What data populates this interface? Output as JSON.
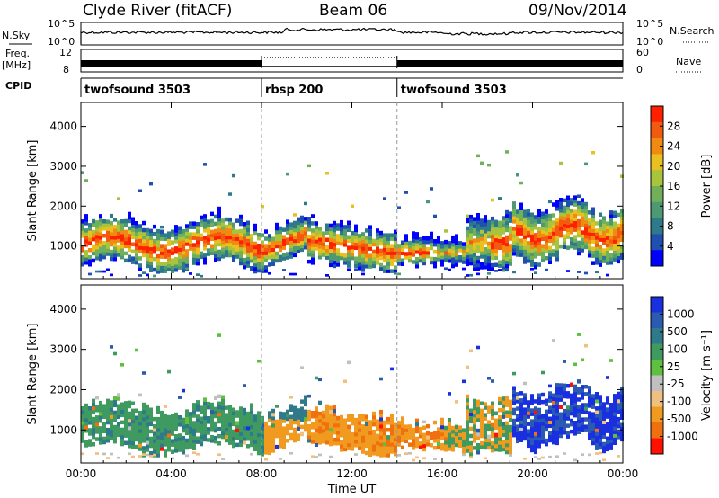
{
  "header": {
    "station": "Clyde River (fitACF)",
    "beam": "Beam 06",
    "date": "09/Nov/2014"
  },
  "labels": {
    "nsky": "N.Sky",
    "nsearch": "N.Search",
    "freq": "Freq.",
    "freq_unit": "[MHz]",
    "nave": "Nave",
    "cpid": "CPID",
    "exp10_5": "10^5",
    "exp10_0": "10^0",
    "freq_hi": "12",
    "freq_lo": "8",
    "nave_hi": "60",
    "nave_lo": "0"
  },
  "cpid_segments": [
    {
      "label": "twofsound 3503",
      "start_hour": 0
    },
    {
      "label": "rbsp 200",
      "start_hour": 8
    },
    {
      "label": "twofsound 3503",
      "start_hour": 14
    }
  ],
  "colors": {
    "power": [
      "#0000ff",
      "#1f4fb0",
      "#2f7a8a",
      "#4d9a72",
      "#70b05a",
      "#a8c43c",
      "#e8c020",
      "#f08a10",
      "#f25a10",
      "#ff2000"
    ],
    "velocity": [
      "#1a2fe0",
      "#2a5bb0",
      "#2f7a8a",
      "#3f9a60",
      "#5fc040",
      "#c0c0c0",
      "#f0c080",
      "#f09a20",
      "#f07010",
      "#ff1000"
    ]
  },
  "chart_data": [
    {
      "type": "heatmap",
      "name": "power",
      "ylabel": "Slant Range [km]",
      "xlabel": "Time UT",
      "x_ticks": [
        "00:00",
        "04:00",
        "08:00",
        "12:00",
        "16:00",
        "20:00",
        "00:00"
      ],
      "x_range_hours": [
        0,
        24
      ],
      "y_ticks": [
        1000,
        2000,
        3000,
        4000
      ],
      "ylim": [
        180,
        4600
      ],
      "colorbar_label": "Power [dB]",
      "colorbar_ticks": [
        "4",
        "8",
        "12",
        "16",
        "20",
        "24",
        "28"
      ],
      "colorbar_range": [
        0,
        32
      ]
    },
    {
      "type": "heatmap",
      "name": "velocity",
      "ylabel": "Slant Range [km]",
      "xlabel": "Time UT",
      "x_ticks": [
        "00:00",
        "04:00",
        "08:00",
        "12:00",
        "16:00",
        "20:00",
        "00:00"
      ],
      "x_range_hours": [
        0,
        24
      ],
      "y_ticks": [
        1000,
        2000,
        3000,
        4000
      ],
      "ylim": [
        180,
        4600
      ],
      "colorbar_label": "Velocity [m s⁻¹]",
      "colorbar_ticks": [
        "1000",
        "500",
        "100",
        "25",
        "-25",
        "-100",
        "-500",
        "-1000"
      ]
    }
  ]
}
